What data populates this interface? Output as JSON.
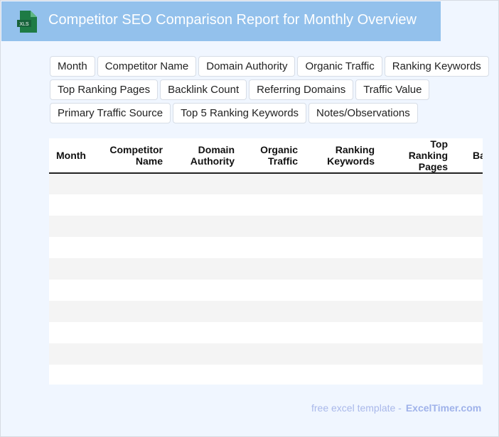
{
  "header": {
    "title": "Competitor SEO Comparison Report for Monthly Overview",
    "icon": "xls-file-icon",
    "icon_label": "XLS"
  },
  "fields": [
    "Month",
    "Competitor Name",
    "Domain Authority",
    "Organic Traffic",
    "Ranking Keywords",
    "Top Ranking Pages",
    "Backlink Count",
    "Referring Domains",
    "Traffic Value",
    "Primary Traffic Source",
    "Top 5 Ranking Keywords",
    "Notes/Observations"
  ],
  "table": {
    "columns": [
      "Month",
      "Competitor Name",
      "Domain Authority",
      "Organic Traffic",
      "Ranking Keywords",
      "Top Ranking Pages",
      "Backlink Count"
    ],
    "row_count": 10
  },
  "footer": {
    "text": "free excel template -",
    "brand": "ExcelTimer.com"
  }
}
